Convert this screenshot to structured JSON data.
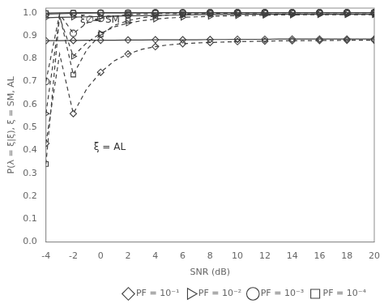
{
  "chart_data": {
    "type": "line",
    "x_label": "SNR (dB)",
    "y_label": "P(λ = ξ|ξ), ξ = SM, AL",
    "x": [
      -4,
      -3,
      -2,
      -1,
      0,
      1,
      2,
      3,
      4,
      5,
      6,
      7,
      8,
      9,
      10,
      11,
      12,
      13,
      14,
      15,
      16,
      17,
      18,
      19,
      20
    ],
    "xlim": [
      -4,
      20
    ],
    "xticks": [
      -4,
      -2,
      0,
      2,
      4,
      6,
      8,
      10,
      12,
      14,
      16,
      18,
      20
    ],
    "ylim": [
      0,
      1.02
    ],
    "yticks": [
      {
        "value": 0,
        "label": "0.0"
      },
      0.1,
      0.2,
      0.3,
      0.4,
      0.5,
      0.6,
      0.7,
      0.8,
      0.9,
      {
        "value": 1,
        "label": "1.0"
      }
    ],
    "grid": false,
    "legend": "lower right",
    "annotations": [
      {
        "text": "ξ∅= SM",
        "x": -1.5,
        "y": 0.955
      },
      {
        "text": "ξ = AL",
        "x": -0.5,
        "y": 0.4
      }
    ],
    "series": [
      {
        "name": "PF = 10⁻¹",
        "color": "#404040",
        "marker": "diamond",
        "line_style": "solid",
        "values": [
          0.878,
          0.878,
          0.879,
          0.88,
          0.88,
          0.88,
          0.881,
          0.881,
          0.882,
          0.882,
          0.882,
          0.882,
          0.883,
          0.883,
          0.884,
          0.884,
          0.884,
          0.885,
          0.885,
          0.885,
          0.885,
          0.885,
          0.885,
          0.885,
          0.885
        ]
      },
      {
        "color": "#404040",
        "marker": "diamond",
        "line_style": "dashed",
        "values": [
          0.43,
          0.82,
          0.56,
          0.67,
          0.74,
          0.79,
          0.82,
          0.84,
          0.852,
          0.86,
          0.865,
          0.868,
          0.87,
          0.872,
          0.874,
          0.875,
          0.876,
          0.877,
          0.878,
          0.878,
          0.879,
          0.879,
          0.88,
          0.88,
          0.88
        ]
      },
      {
        "name": "PF = 10⁻²",
        "color": "#404040",
        "marker": "triangle_right",
        "line_style": "solid",
        "values": [
          0.978,
          0.98,
          0.981,
          0.982,
          0.983,
          0.985,
          0.986,
          0.987,
          0.988,
          0.989,
          0.99,
          0.991,
          0.992,
          0.992,
          0.993,
          0.993,
          0.993,
          0.993,
          0.993,
          0.993,
          0.993,
          0.993,
          0.993,
          0.993,
          0.993
        ]
      },
      {
        "color": "#404040",
        "marker": "triangle_right",
        "line_style": "dashed",
        "values": [
          0.56,
          0.98,
          0.81,
          0.87,
          0.91,
          0.938,
          0.955,
          0.965,
          0.972,
          0.977,
          0.98,
          0.982,
          0.984,
          0.986,
          0.987,
          0.988,
          0.989,
          0.99,
          0.99,
          0.991,
          0.991,
          0.991,
          0.991,
          0.991,
          0.991
        ]
      },
      {
        "name": "PF = 10⁻³",
        "color": "#404040",
        "marker": "circle",
        "line_style": "solid",
        "values": [
          0.994,
          0.996,
          0.997,
          0.998,
          0.999,
          0.999,
          0.999,
          0.999,
          1.0,
          1.0,
          1.0,
          1.0,
          1.0,
          1.0,
          1.0,
          1.0,
          1.0,
          1.0,
          1.0,
          1.0,
          1.0,
          1.0,
          1.0,
          1.0,
          1.0
        ]
      },
      {
        "color": "#404040",
        "marker": "circle",
        "line_style": "dashed",
        "values": [
          0.7,
          0.995,
          0.91,
          0.955,
          0.975,
          0.985,
          0.991,
          0.994,
          0.996,
          0.997,
          0.998,
          0.999,
          1.0,
          1.0,
          1.0,
          1.0,
          1.0,
          1.0,
          1.0,
          1.0,
          1.0,
          1.0,
          1.0,
          1.0,
          1.0
        ]
      },
      {
        "name": "PF = 10⁻⁴",
        "color": "#404040",
        "marker": "square",
        "line_style": "solid",
        "values": [
          0.998,
          0.999,
          1.0,
          1.0,
          1.0,
          1.0,
          1.0,
          1.0,
          1.0,
          1.0,
          1.0,
          1.0,
          1.0,
          1.0,
          1.0,
          1.0,
          1.0,
          1.0,
          1.0,
          1.0,
          1.0,
          1.0,
          1.0,
          1.0,
          1.0
        ]
      },
      {
        "color": "#404040",
        "marker": "square",
        "line_style": "dashed",
        "values": [
          0.34,
          0.99,
          0.73,
          0.84,
          0.905,
          0.945,
          0.965,
          0.978,
          0.985,
          0.99,
          0.993,
          0.995,
          0.997,
          0.998,
          0.999,
          0.999,
          1.0,
          1.0,
          1.0,
          1.0,
          1.0,
          1.0,
          1.0,
          1.0,
          1.0
        ]
      }
    ]
  }
}
